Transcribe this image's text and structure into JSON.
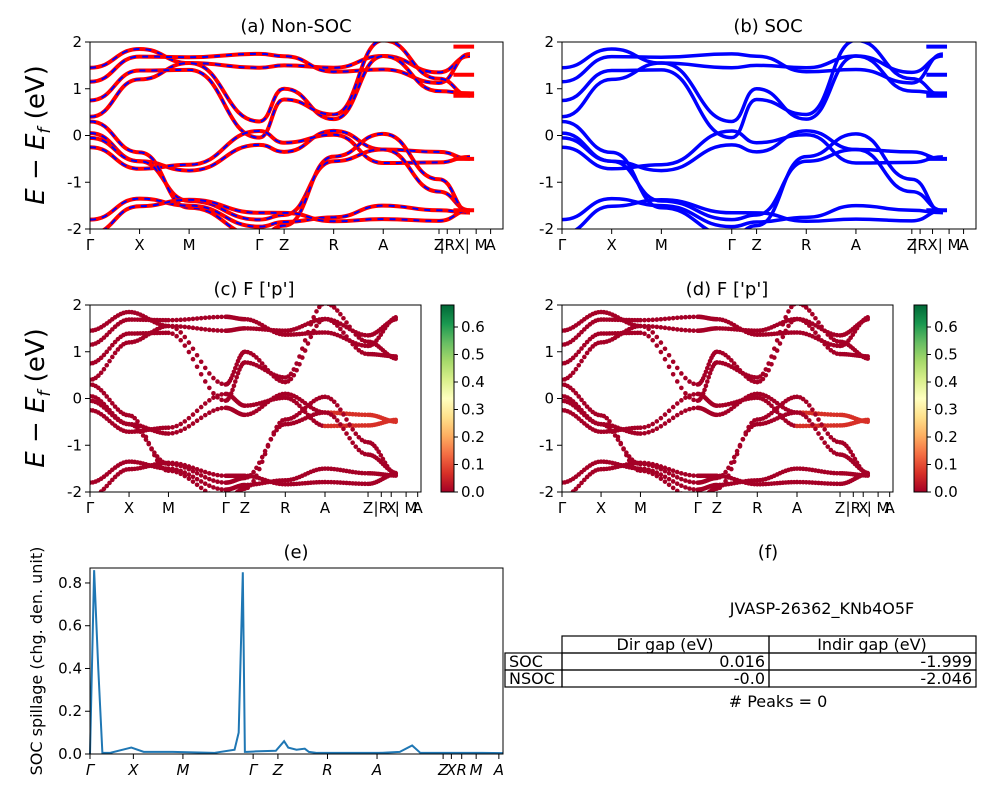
{
  "figure": {
    "bands_ylabel": "E − E",
    "bands_ylabel_sub": "f",
    "bands_ylabel_unit": " (eV)",
    "kpath_labels": [
      "Γ",
      "X",
      "M",
      "Γ",
      "Z",
      "R",
      "A",
      "Z",
      "|R",
      "X",
      "| M",
      "A"
    ],
    "kpath_labels_italic": [
      "Γ",
      "X",
      "M",
      "Γ",
      "Z",
      "R",
      "A",
      "Z",
      "X",
      "R",
      "M",
      "A"
    ],
    "colors": {
      "nonsoc_a": "#ff0000",
      "nonsoc_b": "#0000ff",
      "soc": "#0000ff",
      "spillage": "#1f77b4",
      "axis": "#000000"
    }
  },
  "chart_data": [
    {
      "panel": "a",
      "type": "line",
      "title": "(a) Non-SOC",
      "xlabel": "",
      "ylabel": "E − Ef (eV)",
      "ylim": [
        -2,
        2
      ],
      "yticks": [
        -2,
        -1,
        0,
        1,
        2
      ],
      "series_style": "red solid with blue dashed overlay",
      "bands_sampled_at_high_symmetry_points": [
        [
          1.45,
          1.85,
          1.55,
          1.45,
          1.5,
          1.45,
          1.7,
          1.35,
          1.7
        ],
        [
          0.4,
          1.2,
          1.55,
          0.3,
          1.0,
          0.35,
          1.7,
          0.95,
          0.9
        ],
        [
          0.05,
          -0.55,
          -0.75,
          -0.2,
          -0.35,
          0.1,
          -0.3,
          -0.35,
          -0.5
        ],
        [
          -0.05,
          -0.55,
          -1.4,
          -1.8,
          -1.7,
          -0.55,
          -0.3,
          -1.2,
          -1.6
        ],
        [
          -1.8,
          -1.35,
          -1.5,
          -1.95,
          -1.85,
          -1.75,
          -1.5,
          -1.6,
          -1.65
        ]
      ]
    },
    {
      "panel": "b",
      "type": "line",
      "title": "(b) SOC",
      "xlabel": "",
      "ylabel": "",
      "ylim": [
        -2,
        2
      ],
      "yticks": [
        -2,
        -1,
        0,
        1,
        2
      ],
      "series_style": "blue solid",
      "bands_sampled_at_high_symmetry_points": [
        [
          1.45,
          1.85,
          1.55,
          1.45,
          1.5,
          1.45,
          1.7,
          1.35,
          1.7
        ],
        [
          0.4,
          1.2,
          1.55,
          0.3,
          1.0,
          0.35,
          1.7,
          0.95,
          0.9
        ],
        [
          0.05,
          -0.55,
          -0.75,
          -0.2,
          -0.35,
          0.1,
          -0.3,
          -0.35,
          -0.5
        ],
        [
          -0.05,
          -0.55,
          -1.4,
          -1.8,
          -1.7,
          -0.55,
          -0.3,
          -1.2,
          -1.6
        ],
        [
          -1.8,
          -1.35,
          -1.5,
          -1.95,
          -1.85,
          -1.75,
          -1.5,
          -1.6,
          -1.65
        ]
      ]
    },
    {
      "panel": "c",
      "type": "scatter",
      "title": "(c)  F ['p']",
      "ylabel": "E − Ef (eV)",
      "ylim": [
        -2,
        2
      ],
      "yticks": [
        -2,
        -1,
        0,
        1,
        2
      ],
      "colorbar": {
        "colormap": "RdYlGn",
        "range": [
          0.0,
          0.68
        ],
        "ticks": [
          "0.0",
          "0.1",
          "0.2",
          "0.3",
          "0.4",
          "0.5",
          "0.6"
        ]
      }
    },
    {
      "panel": "d",
      "type": "scatter",
      "title": "(d) F ['p']",
      "ylabel": "",
      "ylim": [
        -2,
        2
      ],
      "yticks": [
        -2,
        -1,
        0,
        1,
        2
      ],
      "colorbar": {
        "colormap": "RdYlGn",
        "range": [
          0.0,
          0.68
        ],
        "ticks": [
          "0.0",
          "0.1",
          "0.2",
          "0.3",
          "0.4",
          "0.5",
          "0.6"
        ]
      }
    },
    {
      "panel": "e",
      "type": "line",
      "title": "(e)",
      "xlabel": "",
      "ylabel": "SOC spillage (chg. den. unit)",
      "ylim": [
        0,
        0.87
      ],
      "yticks": [
        "0.0",
        "0.2",
        "0.4",
        "0.6",
        "0.8"
      ],
      "x": [
        0,
        0.01,
        0.02,
        0.03,
        0.035,
        0.05,
        0.1,
        0.13,
        0.15,
        0.2,
        0.3,
        0.35,
        0.36,
        0.37,
        0.375,
        0.38,
        0.4,
        0.45,
        0.47,
        0.48,
        0.5,
        0.52,
        0.53,
        0.55,
        0.6,
        0.7,
        0.75,
        0.78,
        0.8,
        0.85,
        0.9,
        0.95,
        1.0
      ],
      "y": [
        0.0,
        0.86,
        0.4,
        0.005,
        0.005,
        0.006,
        0.03,
        0.01,
        0.01,
        0.01,
        0.005,
        0.02,
        0.1,
        0.85,
        0.01,
        0.01,
        0.012,
        0.015,
        0.06,
        0.03,
        0.02,
        0.025,
        0.01,
        0.005,
        0.005,
        0.005,
        0.01,
        0.04,
        0.005,
        0.005,
        0.005,
        0.005,
        0.004
      ],
      "color": "#1f77b4"
    },
    {
      "panel": "f",
      "type": "table",
      "title": "(f)",
      "caption": "JVASP-26362_KNb4O5F",
      "columns": [
        "Dir gap (eV)",
        "Indir gap (eV)"
      ],
      "rows": [
        {
          "label": "SOC",
          "dir_gap": "0.016",
          "indir_gap": "-1.999"
        },
        {
          "label": "NSOC",
          "dir_gap": "-0.0",
          "indir_gap": "-2.046"
        }
      ],
      "footer": "# Peaks = 0"
    }
  ]
}
